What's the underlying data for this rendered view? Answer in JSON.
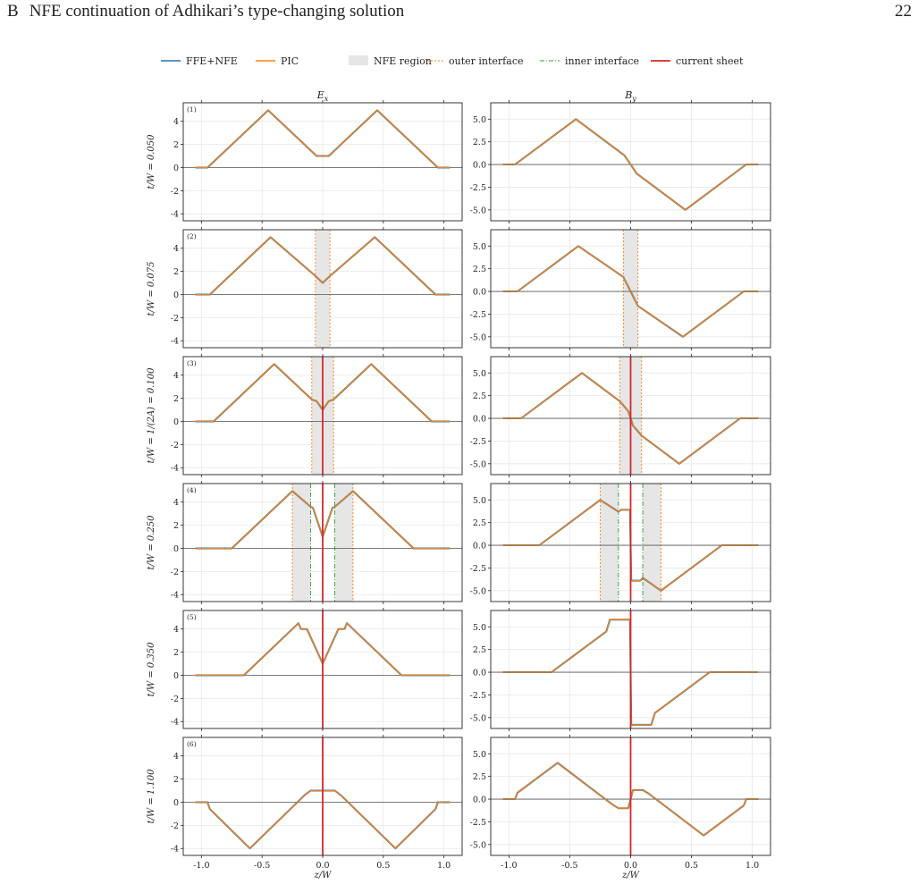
{
  "header": {
    "section_letter": "B",
    "section_title": "NFE continuation of Adhikari’s type-changing solution",
    "page_number": "22"
  },
  "colors": {
    "ffe_nfe": "#1f77b4",
    "pic": "#ff7f0e",
    "nfe_region": "#e6e6e6",
    "outer_interface": "#ff7f0e",
    "inner_interface": "#2ca02c",
    "current_sheet": "#d62728",
    "baseline": "#555555"
  },
  "chart_data": {
    "type": "line",
    "legend": {
      "placement": "top-center",
      "entries": [
        "FFE+NFE",
        "PIC",
        "NFE region",
        "outer interface",
        "inner interface",
        "current sheet"
      ]
    },
    "column_titles": [
      "E_x",
      "B_y"
    ],
    "xlabel": "z/W",
    "x_ticks": [
      "-1.0",
      "-0.5",
      "0.0",
      "0.5",
      "1.0"
    ],
    "xlim": [
      -1.15,
      1.15
    ],
    "grid": true,
    "ex_axis": {
      "ylim": [
        -4.6,
        5.6
      ],
      "ticks": [
        4,
        2,
        0,
        -2,
        -4
      ],
      "tick_labels": [
        "4",
        "2",
        "0",
        "-2",
        "-4"
      ]
    },
    "by_axis": {
      "ylim": [
        -6.2,
        6.8
      ],
      "ticks": [
        5,
        2.5,
        0,
        -2.5,
        -5
      ],
      "tick_labels": [
        "5.0",
        "2.5",
        "0.0",
        "-2.5",
        "-5.0"
      ]
    },
    "rows": [
      {
        "label": "(1)",
        "ylabel": "t/W = 0.050",
        "nfe_regions": [],
        "outer_interfaces": [],
        "inner_interfaces": [],
        "current_sheet": null,
        "ex": [
          [
            -1.05,
            0
          ],
          [
            -0.95,
            0
          ],
          [
            -0.45,
            4.95
          ],
          [
            -0.05,
            1.0
          ],
          [
            0.05,
            1.0
          ],
          [
            0.45,
            4.95
          ],
          [
            0.95,
            0
          ],
          [
            1.05,
            0
          ]
        ],
        "by": [
          [
            -1.05,
            0
          ],
          [
            -0.95,
            0
          ],
          [
            -0.45,
            5.0
          ],
          [
            -0.05,
            1.0
          ],
          [
            0,
            0
          ],
          [
            0.05,
            -1.0
          ],
          [
            0.45,
            -5.0
          ],
          [
            0.95,
            0
          ],
          [
            1.05,
            0
          ]
        ]
      },
      {
        "label": "(2)",
        "ylabel": "t/W = 0.075",
        "nfe_regions": [
          [
            -0.06,
            0.06
          ]
        ],
        "outer_interfaces": [
          -0.06,
          0.06
        ],
        "inner_interfaces": [],
        "current_sheet": null,
        "ex": [
          [
            -1.05,
            0
          ],
          [
            -0.93,
            0
          ],
          [
            -0.43,
            4.95
          ],
          [
            -0.06,
            1.6
          ],
          [
            0,
            1.0
          ],
          [
            0.06,
            1.6
          ],
          [
            0.43,
            4.95
          ],
          [
            0.93,
            0
          ],
          [
            1.05,
            0
          ]
        ],
        "by": [
          [
            -1.05,
            0
          ],
          [
            -0.93,
            0
          ],
          [
            -0.43,
            5.0
          ],
          [
            -0.06,
            1.6
          ],
          [
            0,
            0
          ],
          [
            0.06,
            -1.6
          ],
          [
            0.43,
            -5.0
          ],
          [
            0.93,
            0
          ],
          [
            1.05,
            0
          ]
        ]
      },
      {
        "label": "(3)",
        "ylabel": "t/W = 1/(2A) = 0.100",
        "nfe_regions": [
          [
            -0.09,
            0.09
          ]
        ],
        "outer_interfaces": [
          -0.09,
          0.09
        ],
        "inner_interfaces": [],
        "current_sheet": 0,
        "ex": [
          [
            -1.05,
            0
          ],
          [
            -0.9,
            0
          ],
          [
            -0.4,
            4.95
          ],
          [
            -0.09,
            1.9
          ],
          [
            -0.05,
            1.75
          ],
          [
            0,
            1.0
          ],
          [
            0.05,
            1.75
          ],
          [
            0.09,
            1.9
          ],
          [
            0.4,
            4.95
          ],
          [
            0.9,
            0
          ],
          [
            1.05,
            0
          ]
        ],
        "by": [
          [
            -1.05,
            0
          ],
          [
            -0.9,
            0
          ],
          [
            -0.4,
            5.0
          ],
          [
            -0.09,
            1.9
          ],
          [
            -0.02,
            0.8
          ],
          [
            0,
            0
          ],
          [
            0.02,
            -0.8
          ],
          [
            0.09,
            -1.9
          ],
          [
            0.4,
            -5.0
          ],
          [
            0.9,
            0
          ],
          [
            1.05,
            0
          ]
        ]
      },
      {
        "label": "(4)",
        "ylabel": "t/W = 0.250",
        "nfe_regions": [
          [
            -0.25,
            -0.1
          ],
          [
            0.1,
            0.25
          ]
        ],
        "outer_interfaces": [
          -0.25,
          0.25
        ],
        "inner_interfaces": [
          -0.1,
          0.1
        ],
        "current_sheet": 0,
        "ex": [
          [
            -1.05,
            0
          ],
          [
            -0.75,
            0
          ],
          [
            -0.25,
            4.95
          ],
          [
            -0.1,
            3.6
          ],
          [
            -0.08,
            3.5
          ],
          [
            0,
            1.0
          ],
          [
            0.08,
            3.5
          ],
          [
            0.1,
            3.6
          ],
          [
            0.25,
            4.95
          ],
          [
            0.75,
            0
          ],
          [
            1.05,
            0
          ]
        ],
        "by": [
          [
            -1.05,
            0
          ],
          [
            -0.75,
            0
          ],
          [
            -0.25,
            5.0
          ],
          [
            -0.1,
            3.7
          ],
          [
            -0.08,
            3.9
          ],
          [
            -0.005,
            3.9
          ],
          [
            0.005,
            -3.9
          ],
          [
            0.08,
            -3.9
          ],
          [
            0.1,
            -3.6
          ],
          [
            0.25,
            -5.0
          ],
          [
            0.75,
            0
          ],
          [
            1.05,
            0
          ]
        ]
      },
      {
        "label": "(5)",
        "ylabel": "t/W = 0.350",
        "nfe_regions": [],
        "outer_interfaces": [],
        "inner_interfaces": [],
        "current_sheet": 0,
        "ex": [
          [
            -1.05,
            0
          ],
          [
            -0.65,
            0
          ],
          [
            -0.2,
            4.5
          ],
          [
            -0.18,
            4.0
          ],
          [
            -0.13,
            4.0
          ],
          [
            0,
            1.0
          ],
          [
            0.13,
            4.0
          ],
          [
            0.18,
            4.0
          ],
          [
            0.2,
            4.5
          ],
          [
            0.65,
            0
          ],
          [
            1.05,
            0
          ]
        ],
        "by": [
          [
            -1.05,
            0
          ],
          [
            -0.65,
            0
          ],
          [
            -0.2,
            4.5
          ],
          [
            -0.17,
            5.8
          ],
          [
            -0.005,
            5.8
          ],
          [
            0.005,
            -5.8
          ],
          [
            0.17,
            -5.8
          ],
          [
            0.2,
            -4.5
          ],
          [
            0.65,
            0
          ],
          [
            1.05,
            0
          ]
        ]
      },
      {
        "label": "(6)",
        "ylabel": "t/W = 1.100",
        "nfe_regions": [],
        "outer_interfaces": [],
        "inner_interfaces": [],
        "current_sheet": 0,
        "ex": [
          [
            -1.05,
            0
          ],
          [
            -0.95,
            0
          ],
          [
            -0.93,
            -0.6
          ],
          [
            -0.6,
            -4.0
          ],
          [
            -0.15,
            0.6
          ],
          [
            -0.1,
            1.0
          ],
          [
            0.1,
            1.0
          ],
          [
            0.15,
            0.6
          ],
          [
            0.6,
            -4.0
          ],
          [
            0.93,
            -0.6
          ],
          [
            0.95,
            0
          ],
          [
            1.05,
            0
          ]
        ],
        "by": [
          [
            -1.05,
            0
          ],
          [
            -0.95,
            0
          ],
          [
            -0.93,
            0.7
          ],
          [
            -0.6,
            4.0
          ],
          [
            -0.15,
            -0.6
          ],
          [
            -0.1,
            -1.0
          ],
          [
            -0.02,
            -1.0
          ],
          [
            0,
            0
          ],
          [
            0.02,
            1.0
          ],
          [
            0.1,
            1.0
          ],
          [
            0.15,
            0.6
          ],
          [
            0.6,
            -4.0
          ],
          [
            0.93,
            -0.7
          ],
          [
            0.95,
            0
          ],
          [
            1.05,
            0
          ]
        ]
      }
    ]
  }
}
